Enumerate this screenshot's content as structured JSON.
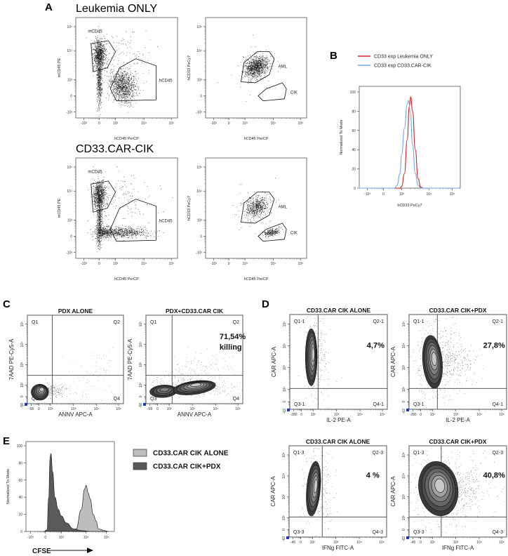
{
  "panel_a": {
    "label": "A",
    "row_titles": [
      "Leukemia ONLY",
      "CD33.CAR-CIK"
    ],
    "x_ticks": [
      "-10³",
      "0",
      "10³",
      "10⁴",
      "10⁵"
    ],
    "y_ticks": [
      "10⁵",
      "10⁴",
      "10³",
      "0",
      "-10³"
    ],
    "left_plot": {
      "xlabel": "hCD45 PerCP",
      "ylabel": "mCD45 PE",
      "gates": [
        "mCD45",
        "hCD45"
      ]
    },
    "right_plot": {
      "xlabel": "hCD45 PerCP",
      "ylabel": "hCD33 PeCy7",
      "gates": [
        "AML",
        "CIK"
      ]
    }
  },
  "panel_b": {
    "label": "B",
    "colors": {
      "leukemia": "#d0202a",
      "car_cik": "#6fa8e8"
    }
  },
  "panel_c": {
    "label": "C",
    "titles": [
      "PDX ALONE",
      "PDX+CD33.CAR CIK"
    ],
    "xlabel": "ANNV APC-A",
    "ylabel": "7AAD PE-Cy5-A",
    "quadrants": [
      "Q1",
      "Q2",
      "Q3",
      "Q4"
    ],
    "x_ticks": [
      "-58",
      "0",
      "10²",
      "10³",
      "10⁴",
      "10⁵"
    ],
    "y_ticks": [
      "10⁵",
      "10⁴",
      "10³",
      "10²",
      "0",
      "-58"
    ],
    "annotation": [
      "71,54%",
      "killing"
    ]
  },
  "panel_d": {
    "label": "D",
    "titles": [
      "CD33.CAR CIK ALONE",
      "CD33.CAR CIK+PDX"
    ],
    "top_row": {
      "xlabel": "IL-2 PE-A",
      "ylabel": "CAR APC-A",
      "quadrants": [
        "Q1-1",
        "Q2-1",
        "Q3-1",
        "Q4-1"
      ],
      "x_ticks": [
        "-280",
        "0",
        "10²",
        "10³",
        "10⁴",
        "10⁵"
      ],
      "y_ticks": [
        "10⁵",
        "10⁴",
        "10³",
        "10²",
        "0",
        "-62"
      ],
      "percents": [
        "4,7%",
        "27,8%"
      ]
    },
    "bottom_row": {
      "xlabel": "IFNg FITC-A",
      "ylabel": "CAR APC-A",
      "quadrants": [
        "Q1-3",
        "Q2-3",
        "Q3-3",
        "Q4-3"
      ],
      "x_ticks": [
        "-45",
        "0",
        "10²",
        "10³",
        "10⁴",
        "10⁵"
      ],
      "y_ticks": [
        "10⁵",
        "10⁴",
        "10³",
        "10²",
        "0",
        "-62"
      ],
      "percents": [
        "4 %",
        "40,8%"
      ]
    }
  },
  "panel_e": {
    "label": "E",
    "xlabel_arrow": "CFSE",
    "colors": {
      "alone": "#bdbdbd",
      "pdx": "#5a5a5a"
    }
  },
  "chart_data": [
    {
      "panel": "B",
      "type": "line",
      "xlabel": "hCD33 PeCy7",
      "ylabel": "Normalized To Mode",
      "x_ticks": [
        "-10³",
        "0",
        "10³",
        "10⁴",
        "10⁵"
      ],
      "x_tick_values": [
        -1,
        0,
        1,
        2,
        3
      ],
      "y_ticks": [
        "100",
        "80",
        "60",
        "40",
        "20",
        "0"
      ],
      "y_tick_values": [
        100,
        80,
        60,
        40,
        20,
        0
      ],
      "ylim": [
        0,
        106
      ],
      "legend_position": "top",
      "series": [
        {
          "name": "CD33 exp Leukemia ONLY",
          "color": "#d0202a",
          "points": [
            [
              -1.6,
              0
            ],
            [
              0.9,
              0
            ],
            [
              1.0,
              2
            ],
            [
              1.1,
              15
            ],
            [
              1.2,
              50
            ],
            [
              1.28,
              85
            ],
            [
              1.33,
              95
            ],
            [
              1.4,
              80
            ],
            [
              1.5,
              40
            ],
            [
              1.6,
              10
            ],
            [
              1.7,
              1
            ],
            [
              1.8,
              0
            ],
            [
              3.3,
              0
            ]
          ]
        },
        {
          "name": "CD33 exp CD33.CAR-CIK",
          "color": "#6fa8e8",
          "points": [
            [
              -1.6,
              0
            ],
            [
              0.6,
              0
            ],
            [
              0.75,
              3
            ],
            [
              0.9,
              15
            ],
            [
              1.0,
              35
            ],
            [
              1.1,
              62
            ],
            [
              1.2,
              87
            ],
            [
              1.25,
              91
            ],
            [
              1.32,
              78
            ],
            [
              1.4,
              45
            ],
            [
              1.5,
              15
            ],
            [
              1.6,
              3
            ],
            [
              1.7,
              0
            ],
            [
              3.3,
              0
            ]
          ]
        }
      ]
    },
    {
      "panel": "E",
      "type": "area",
      "xlabel": "CFSE",
      "ylabel": "Normalized To Mode",
      "x_ticks": [
        "-10³",
        "0",
        "10³",
        "10⁴",
        "10⁵"
      ],
      "x_tick_values": [
        -1,
        0,
        1,
        2,
        3
      ],
      "y_ticks": [
        "100",
        "80",
        "60",
        "40",
        "20",
        "0"
      ],
      "y_tick_values": [
        100,
        80,
        60,
        40,
        20,
        0
      ],
      "ylim": [
        0,
        100
      ],
      "legend_position": "right",
      "series": [
        {
          "name": "CD33.CAR CIK ALONE",
          "color": "#bdbdbd",
          "points": [
            [
              1.4,
              0
            ],
            [
              1.6,
              3
            ],
            [
              1.8,
              25
            ],
            [
              1.95,
              50
            ],
            [
              2.0,
              54
            ],
            [
              2.1,
              45
            ],
            [
              2.2,
              38
            ],
            [
              2.35,
              20
            ],
            [
              2.5,
              12
            ],
            [
              2.6,
              3
            ],
            [
              2.9,
              1
            ],
            [
              3.1,
              0
            ]
          ]
        },
        {
          "name": "CD33.CAR CIK+PDX",
          "color": "#5a5a5a",
          "points": [
            [
              -0.1,
              0
            ],
            [
              0.1,
              2
            ],
            [
              0.2,
              40
            ],
            [
              0.3,
              88
            ],
            [
              0.35,
              91
            ],
            [
              0.45,
              70
            ],
            [
              0.6,
              40
            ],
            [
              0.8,
              26
            ],
            [
              1.0,
              18
            ],
            [
              1.2,
              10
            ],
            [
              1.5,
              3
            ],
            [
              1.8,
              1
            ],
            [
              2.2,
              0
            ]
          ]
        }
      ]
    },
    {
      "panel": "C",
      "type": "scatter",
      "plots": [
        {
          "title": "PDX ALONE",
          "Q2_percent": null
        },
        {
          "title": "PDX+CD33.CAR CIK",
          "Q2_percent": 71.54
        }
      ]
    },
    {
      "panel": "D",
      "type": "scatter",
      "plots": [
        {
          "title": "CD33.CAR CIK ALONE",
          "x": "IL-2 PE-A",
          "Q2_percent": 4.7
        },
        {
          "title": "CD33.CAR CIK+PDX",
          "x": "IL-2 PE-A",
          "Q2_percent": 27.8
        },
        {
          "title": "CD33.CAR CIK ALONE",
          "x": "IFNg FITC-A",
          "Q2_percent": 4
        },
        {
          "title": "CD33.CAR CIK+PDX",
          "x": "IFNg FITC-A",
          "Q2_percent": 40.8
        }
      ]
    }
  ]
}
